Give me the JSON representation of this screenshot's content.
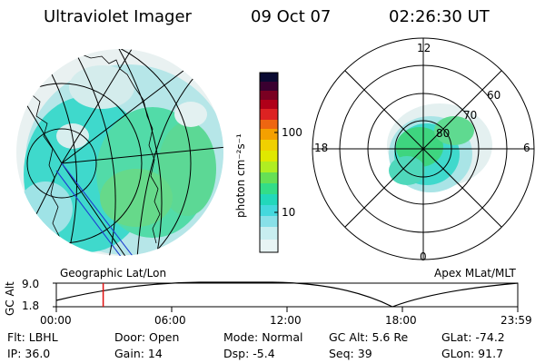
{
  "header": {
    "instrument": "Ultraviolet Imager",
    "date": "09 Oct 07",
    "time": "02:26:30 UT"
  },
  "colorbar": {
    "unit_label": "photon cm⁻²s⁻¹",
    "ticks": [
      "100",
      "10"
    ],
    "colors": [
      "#0a0a32",
      "#3a0030",
      "#7a0022",
      "#b00018",
      "#dd2222",
      "#ee6611",
      "#f5a000",
      "#f0d000",
      "#e0e800",
      "#b0ee22",
      "#66e055",
      "#33dd88",
      "#22d8bb",
      "#44d8dd",
      "#88e0e8",
      "#c8eef0",
      "#e8f4f4"
    ]
  },
  "geographic_panel": {
    "label": "Geographic Lat/Lon"
  },
  "polar_panel": {
    "label": "Apex MLat/MLT",
    "mlt_labels": {
      "top": "12",
      "bottom": "0",
      "left": "18",
      "right": "6"
    },
    "mlat_labels": [
      "60",
      "70",
      "80"
    ]
  },
  "altitude_plot": {
    "ylabel": "GC Alt",
    "y_ticks": [
      "9.0",
      "1.8"
    ],
    "x_ticks": [
      "00:00",
      "06:00",
      "12:00",
      "18:00",
      "23:59"
    ],
    "current_time_hours": 2.44
  },
  "status": {
    "filter": "Flt: LBHL",
    "ip": "IP: 36.0",
    "door": "Door: Open",
    "gain": "Gain: 14",
    "mode": "Mode: Normal",
    "dsp": "Dsp:    -5.4",
    "gc_alt": "GC Alt: 5.6 Re",
    "seq": "Seq: 39",
    "glat": "GLat:  -74.2",
    "glon": "GLon:  91.7"
  }
}
